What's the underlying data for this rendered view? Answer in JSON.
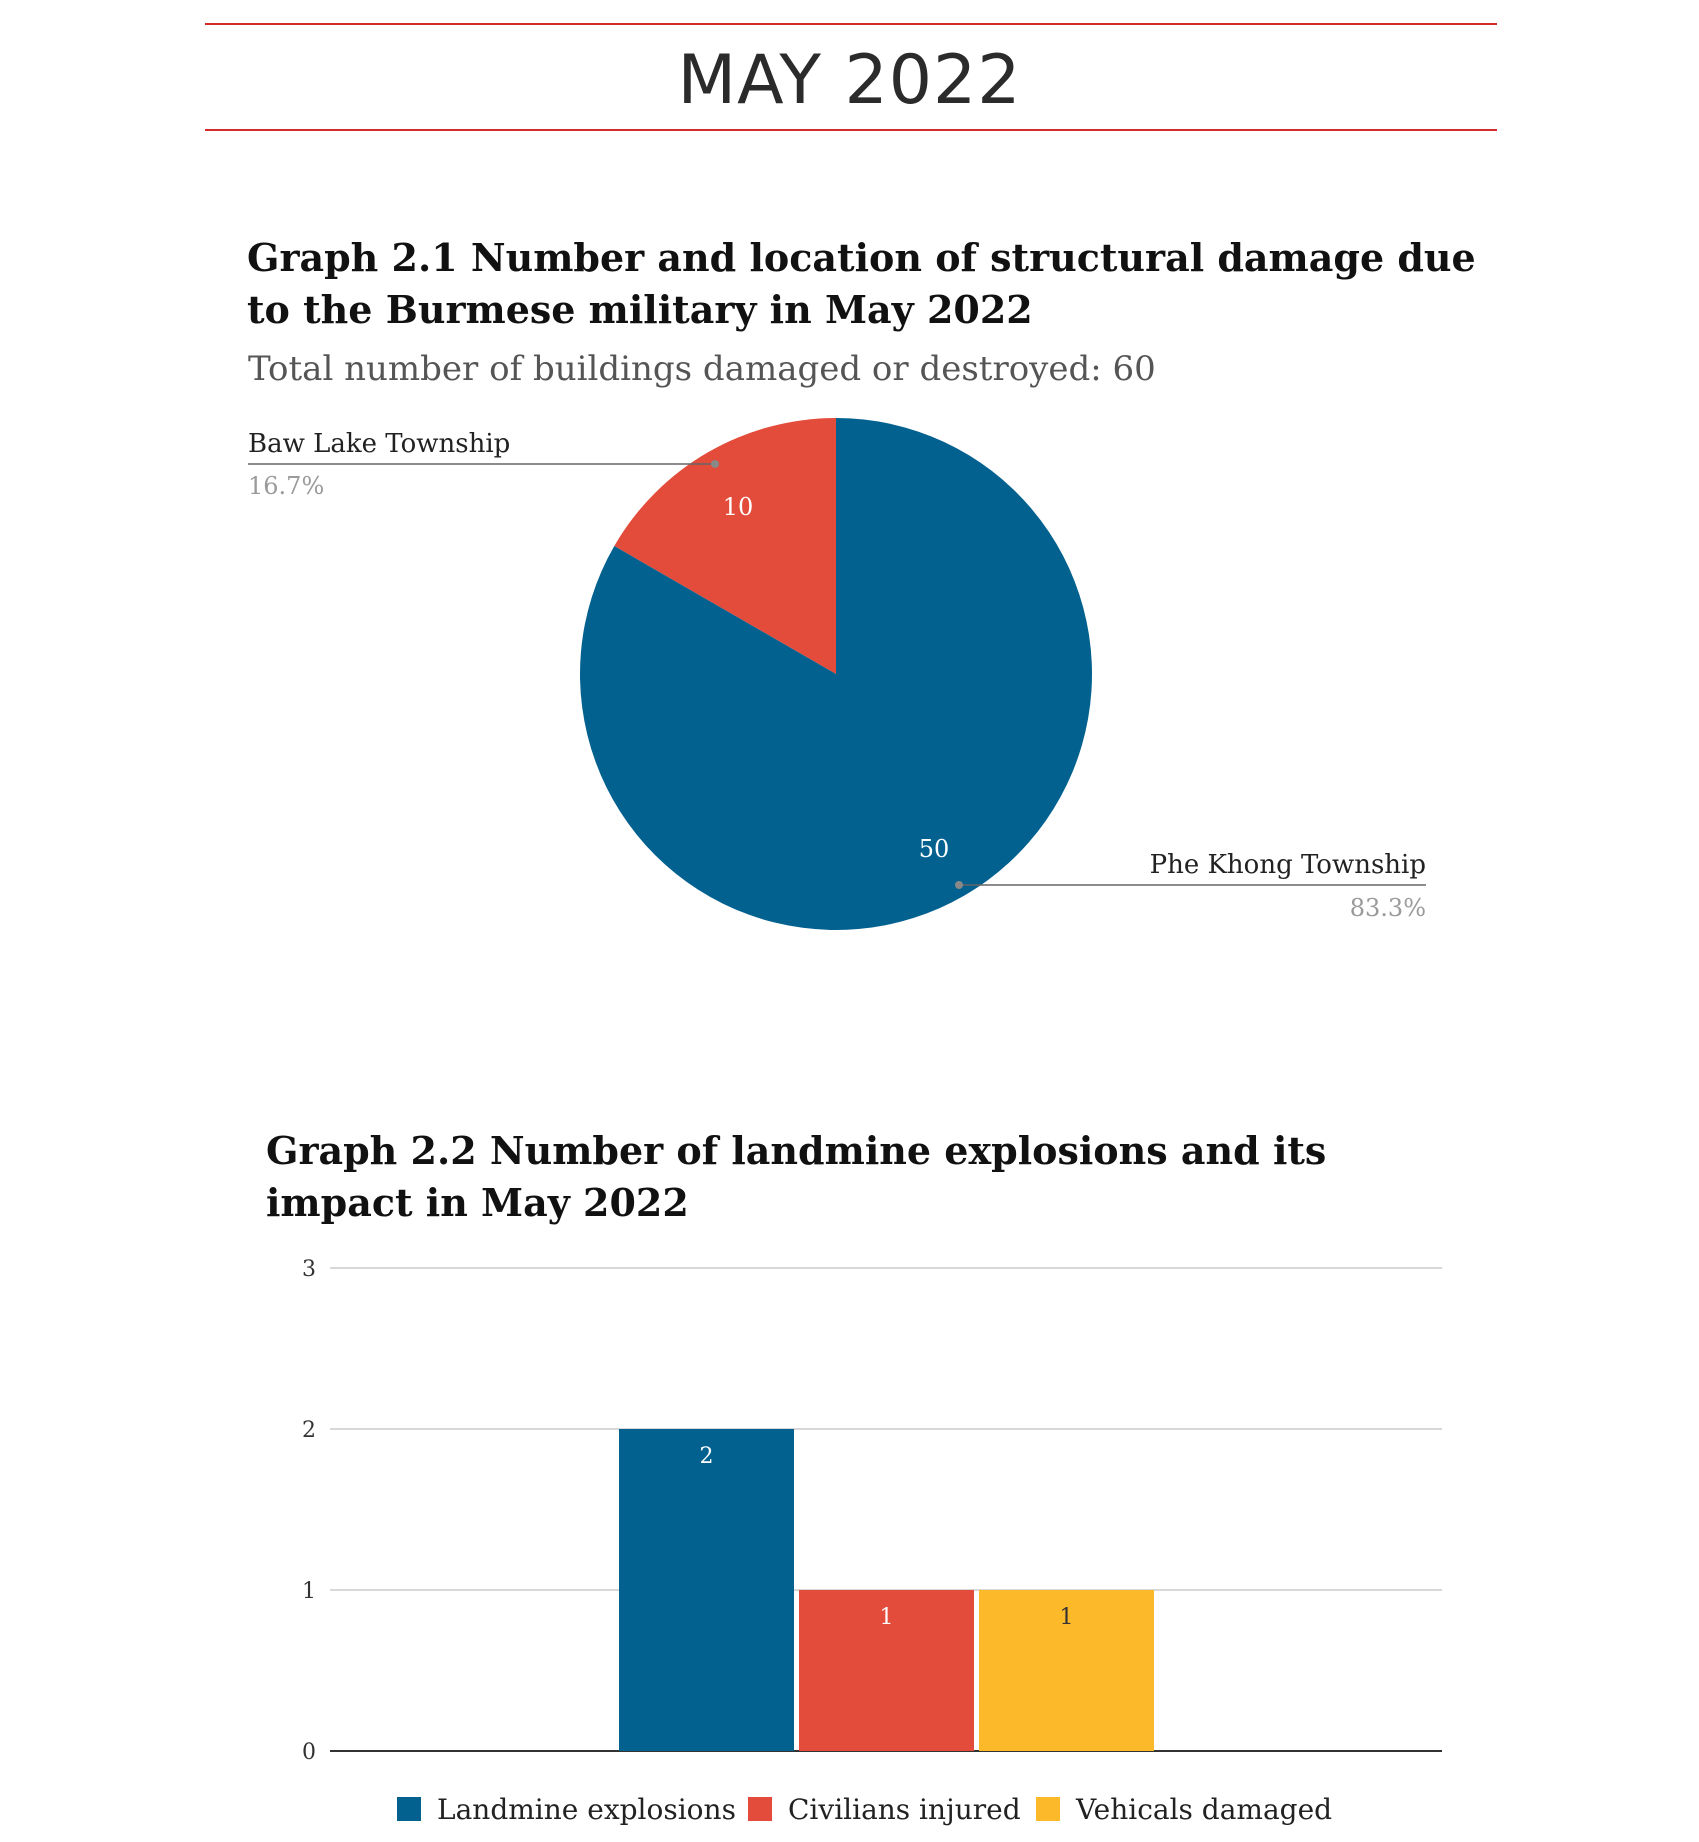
{
  "header": {
    "title": "MAY 2022"
  },
  "colors": {
    "rule": "#d62b2b",
    "blue": "#02618f",
    "red": "#e34b3a",
    "yellow": "#fcb92a"
  },
  "chart_data": [
    {
      "type": "pie",
      "title": "Graph 2.1 Number and location of structural damage due to the Burmese military in May 2022",
      "subtitle": "Total number of buildings damaged or destroyed: 60",
      "slices": [
        {
          "label": "Baw Lake Township",
          "value": 10,
          "percent_label": "16.7%",
          "color": "#e34b3a"
        },
        {
          "label": "Phe Khong Township",
          "value": 50,
          "percent_label": "83.3%",
          "color": "#02618f"
        }
      ]
    },
    {
      "type": "bar",
      "title": "Graph 2.2 Number of landmine explosions and its impact in May 2022",
      "ylim": [
        0,
        3
      ],
      "yticks": [
        0,
        1,
        2,
        3
      ],
      "grid": true,
      "legend_position": "bottom",
      "series": [
        {
          "name": "Landmine explosions",
          "values": [
            2
          ],
          "color": "#02618f"
        },
        {
          "name": "Civilians injured",
          "values": [
            1
          ],
          "color": "#e34b3a"
        },
        {
          "name": "Vehicals damaged",
          "values": [
            1
          ],
          "color": "#fcb92a"
        }
      ]
    }
  ]
}
